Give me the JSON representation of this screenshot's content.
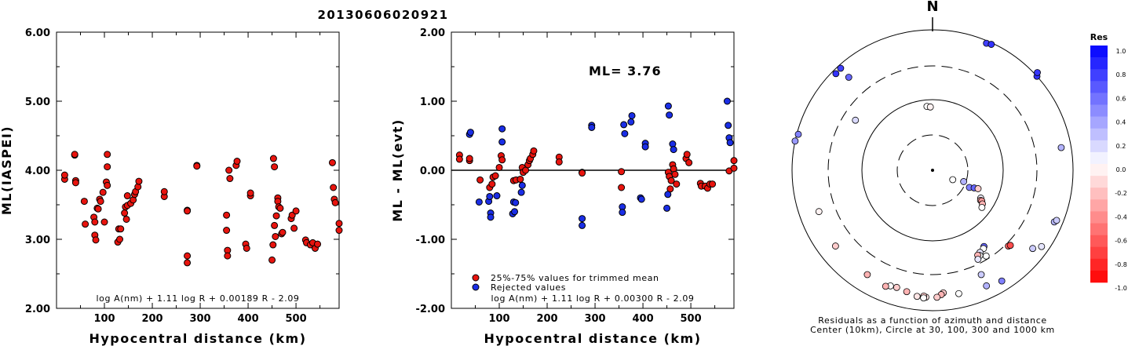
{
  "title": "20130606020921",
  "left_panel": {
    "ylabel": "ML(IASPEI)",
    "xlabel": "Hypocentral distance (km)",
    "formula": "log A(nm) + 1.11 log R + 0.00189 R - 2.09",
    "yticks": [
      "6.00",
      "5.00",
      "4.00",
      "3.00",
      "2.00"
    ],
    "xticks": [
      "100",
      "200",
      "300",
      "400",
      "500"
    ]
  },
  "middle_panel": {
    "ylabel": "ML - ML(evt)",
    "xlabel": "Hypocentral distance (km)",
    "ml_label": "ML= 3.76",
    "legend_trimmed": "25%-75% values for trimmed mean",
    "legend_rejected": "Rejected values",
    "formula": "log A(nm) + 1.11 log R + 0.00300 R - 2.09",
    "yticks": [
      "2.00",
      "1.00",
      "0.00",
      "-1.00",
      "-2.00"
    ],
    "xticks": [
      "100",
      "200",
      "300",
      "400",
      "500"
    ]
  },
  "polar_panel": {
    "north_label": "N",
    "caption_line1": "Residuals as a function of azimuth and distance",
    "caption_line2": "Center (10km), Circle at 30, 100, 300 and 1000 km"
  },
  "colorbar": {
    "title": "Res",
    "labels": [
      "1.0",
      "0.8",
      "0.6",
      "0.4",
      "0.2",
      "0.0",
      "-0.2",
      "-0.4",
      "-0.6",
      "-0.8",
      "-1.0"
    ]
  },
  "colors": {
    "trimmed": "#e8140e",
    "rejected": "#1a2ee6",
    "positive_residual": "#0000ff",
    "negative_residual": "#ff0000"
  },
  "chart_data": [
    {
      "type": "scatter",
      "name": "ml-vs-distance",
      "xlabel": "Hypocentral distance (km)",
      "ylabel": "ML(IASPEI)",
      "xlim": [
        0,
        590
      ],
      "ylim": [
        2,
        6
      ],
      "points": [
        [
          17,
          3.87
        ],
        [
          17,
          3.93
        ],
        [
          38,
          4.22
        ],
        [
          38,
          4.23
        ],
        [
          40,
          3.85
        ],
        [
          40,
          3.82
        ],
        [
          58,
          3.55
        ],
        [
          60,
          3.22
        ],
        [
          78,
          3.32
        ],
        [
          80,
          3.25
        ],
        [
          80,
          3.06
        ],
        [
          82,
          2.99
        ],
        [
          85,
          3.45
        ],
        [
          87,
          3.44
        ],
        [
          90,
          3.58
        ],
        [
          92,
          3.55
        ],
        [
          97,
          3.68
        ],
        [
          100,
          3.25
        ],
        [
          104,
          3.83
        ],
        [
          106,
          3.78
        ],
        [
          106,
          4.23
        ],
        [
          106,
          4.05
        ],
        [
          128,
          2.96
        ],
        [
          130,
          3.15
        ],
        [
          132,
          3.0
        ],
        [
          134,
          3.15
        ],
        [
          142,
          3.38
        ],
        [
          144,
          3.47
        ],
        [
          146,
          3.29
        ],
        [
          148,
          3.49
        ],
        [
          148,
          3.63
        ],
        [
          155,
          3.52
        ],
        [
          160,
          3.57
        ],
        [
          163,
          3.65
        ],
        [
          165,
          3.69
        ],
        [
          170,
          3.76
        ],
        [
          172,
          3.84
        ],
        [
          225,
          3.62
        ],
        [
          225,
          3.69
        ],
        [
          273,
          3.42
        ],
        [
          273,
          3.41
        ],
        [
          273,
          2.76
        ],
        [
          273,
          2.66
        ],
        [
          293,
          4.07
        ],
        [
          293,
          4.06
        ],
        [
          355,
          3.35
        ],
        [
          355,
          3.13
        ],
        [
          357,
          2.84
        ],
        [
          357,
          2.76
        ],
        [
          360,
          4.0
        ],
        [
          362,
          3.88
        ],
        [
          375,
          4.07
        ],
        [
          377,
          4.13
        ],
        [
          395,
          2.93
        ],
        [
          397,
          2.87
        ],
        [
          405,
          3.63
        ],
        [
          405,
          3.67
        ],
        [
          450,
          2.7
        ],
        [
          452,
          2.92
        ],
        [
          453,
          4.17
        ],
        [
          455,
          4.05
        ],
        [
          455,
          3.2
        ],
        [
          457,
          3.04
        ],
        [
          459,
          3.34
        ],
        [
          462,
          3.6
        ],
        [
          462,
          3.55
        ],
        [
          464,
          3.47
        ],
        [
          467,
          3.45
        ],
        [
          470,
          3.08
        ],
        [
          472,
          3.1
        ],
        [
          490,
          3.3
        ],
        [
          492,
          3.35
        ],
        [
          496,
          3.16
        ],
        [
          500,
          3.41
        ],
        [
          520,
          2.99
        ],
        [
          522,
          2.95
        ],
        [
          530,
          2.92
        ],
        [
          535,
          2.95
        ],
        [
          540,
          2.87
        ],
        [
          545,
          2.93
        ],
        [
          576,
          4.11
        ],
        [
          578,
          3.75
        ],
        [
          580,
          3.58
        ],
        [
          582,
          3.53
        ],
        [
          590,
          3.23
        ],
        [
          590,
          3.13
        ]
      ]
    },
    {
      "type": "scatter",
      "name": "residual-vs-distance",
      "xlabel": "Hypocentral distance (km)",
      "ylabel": "ML - ML(evt)",
      "xlim": [
        0,
        590
      ],
      "ylim": [
        -2,
        2
      ],
      "series": [
        {
          "name": "25%-75% values for trimmed mean",
          "points": [
            [
              17,
              0.22
            ],
            [
              17,
              0.16
            ],
            [
              38,
              0.14
            ],
            [
              38,
              0.17
            ],
            [
              60,
              -0.14
            ],
            [
              80,
              -0.25
            ],
            [
              85,
              -0.2
            ],
            [
              87,
              -0.1
            ],
            [
              92,
              -0.08
            ],
            [
              100,
              0.04
            ],
            [
              104,
              0.21
            ],
            [
              106,
              0.15
            ],
            [
              130,
              -0.15
            ],
            [
              135,
              -0.14
            ],
            [
              144,
              -0.13
            ],
            [
              148,
              0.04
            ],
            [
              150,
              -0.03
            ],
            [
              155,
              0.0
            ],
            [
              160,
              0.08
            ],
            [
              163,
              0.14
            ],
            [
              165,
              0.17
            ],
            [
              170,
              0.23
            ],
            [
              172,
              0.28
            ],
            [
              225,
              0.19
            ],
            [
              225,
              0.12
            ],
            [
              273,
              -0.03
            ],
            [
              273,
              -0.04
            ],
            [
              355,
              -0.02
            ],
            [
              355,
              -0.25
            ],
            [
              453,
              -0.03
            ],
            [
              455,
              -0.09
            ],
            [
              457,
              -0.27
            ],
            [
              459,
              -0.15
            ],
            [
              462,
              0.08
            ],
            [
              464,
              0.02
            ],
            [
              467,
              -0.06
            ],
            [
              470,
              -0.2
            ],
            [
              490,
              0.17
            ],
            [
              492,
              0.23
            ],
            [
              496,
              0.11
            ],
            [
              520,
              -0.19
            ],
            [
              522,
              -0.23
            ],
            [
              530,
              -0.23
            ],
            [
              535,
              -0.26
            ],
            [
              540,
              -0.2
            ],
            [
              545,
              -0.2
            ],
            [
              580,
              -0.01
            ],
            [
              590,
              0.03
            ],
            [
              590,
              0.14
            ]
          ]
        },
        {
          "name": "Rejected values",
          "points": [
            [
              38,
              0.52
            ],
            [
              40,
              0.55
            ],
            [
              58,
              -0.46
            ],
            [
              78,
              -0.45
            ],
            [
              80,
              -0.38
            ],
            [
              82,
              -0.62
            ],
            [
              82,
              -0.68
            ],
            [
              95,
              -0.37
            ],
            [
              106,
              0.6
            ],
            [
              106,
              0.41
            ],
            [
              128,
              -0.63
            ],
            [
              130,
              -0.46
            ],
            [
              132,
              -0.6
            ],
            [
              134,
              -0.47
            ],
            [
              146,
              -0.32
            ],
            [
              148,
              -0.22
            ],
            [
              273,
              -0.7
            ],
            [
              273,
              -0.8
            ],
            [
              293,
              0.65
            ],
            [
              293,
              0.62
            ],
            [
              357,
              -0.53
            ],
            [
              357,
              -0.61
            ],
            [
              360,
              0.66
            ],
            [
              362,
              0.53
            ],
            [
              375,
              0.7
            ],
            [
              377,
              0.79
            ],
            [
              395,
              -0.4
            ],
            [
              397,
              -0.42
            ],
            [
              405,
              0.39
            ],
            [
              405,
              0.34
            ],
            [
              450,
              -0.55
            ],
            [
              452,
              -0.35
            ],
            [
              453,
              0.93
            ],
            [
              455,
              0.8
            ],
            [
              462,
              0.38
            ],
            [
              464,
              0.3
            ],
            [
              576,
              1.0
            ],
            [
              578,
              0.65
            ],
            [
              580,
              0.47
            ],
            [
              582,
              0.4
            ]
          ]
        }
      ],
      "annotation": "ML= 3.76"
    },
    {
      "type": "scatter",
      "name": "residual-vs-azimuth-distance",
      "rings_km": [
        30,
        100,
        300,
        1000
      ],
      "center_km": 10,
      "points": [
        {
          "az": 355,
          "dist": 80,
          "res": 0.0
        },
        {
          "az": 358,
          "dist": 78,
          "res": -0.05
        },
        {
          "az": 23,
          "dist": 920,
          "res": 0.75
        },
        {
          "az": 25,
          "dist": 950,
          "res": 0.8
        },
        {
          "az": 315,
          "dist": 880,
          "res": 0.8
        },
        {
          "az": 318,
          "dist": 900,
          "res": 0.75
        },
        {
          "az": 318,
          "dist": 600,
          "res": 0.6
        },
        {
          "az": 48,
          "dist": 1000,
          "res": 0.8
        },
        {
          "az": 47,
          "dist": 1050,
          "res": 0.78
        },
        {
          "az": 285,
          "dist": 950,
          "res": 0.5
        },
        {
          "az": 282,
          "dist": 1000,
          "res": 0.4
        },
        {
          "az": 303,
          "dist": 200,
          "res": 0.15
        },
        {
          "az": 80,
          "dist": 720,
          "res": 0.3
        },
        {
          "az": 250,
          "dist": 520,
          "res": -0.05
        },
        {
          "az": 115,
          "dist": 20,
          "res": 0.0
        },
        {
          "az": 110,
          "dist": 28,
          "res": 0.3
        },
        {
          "az": 115,
          "dist": 36,
          "res": 0.5
        },
        {
          "az": 113,
          "dist": 42,
          "res": 0.6
        },
        {
          "az": 112,
          "dist": 48,
          "res": -0.2
        },
        {
          "az": 120,
          "dist": 60,
          "res": 0.05
        },
        {
          "az": 122,
          "dist": 62,
          "res": -0.3
        },
        {
          "az": 122,
          "dist": 65,
          "res": -0.4
        },
        {
          "az": 124,
          "dist": 70,
          "res": -0.3
        },
        {
          "az": 127,
          "dist": 74,
          "res": 0.0
        },
        {
          "az": 146,
          "dist": 200,
          "res": 0.6
        },
        {
          "az": 147,
          "dist": 210,
          "res": 0.0
        },
        {
          "az": 150,
          "dist": 220,
          "res": 0.1
        },
        {
          "az": 151,
          "dist": 240,
          "res": 0.0
        },
        {
          "az": 152,
          "dist": 230,
          "res": -0.3
        },
        {
          "az": 153,
          "dist": 260,
          "res": 0.1
        },
        {
          "az": 148,
          "dist": 270,
          "res": 0.0
        },
        {
          "az": 135,
          "dist": 330,
          "res": -0.6
        },
        {
          "az": 134,
          "dist": 340,
          "res": -0.7
        },
        {
          "az": 155,
          "dist": 430,
          "res": 0.2
        },
        {
          "az": 175,
          "dist": 560,
          "res": -0.2
        },
        {
          "az": 176,
          "dist": 590,
          "res": -0.3
        },
        {
          "az": 178,
          "dist": 640,
          "res": -0.2
        },
        {
          "az": 183,
          "dist": 640,
          "res": -0.1
        },
        {
          "az": 184,
          "dist": 620,
          "res": -0.2
        },
        {
          "az": 184,
          "dist": 660,
          "res": 0.0
        },
        {
          "az": 187,
          "dist": 640,
          "res": -0.1
        },
        {
          "az": 192,
          "dist": 580,
          "res": -0.3
        },
        {
          "az": 197,
          "dist": 550,
          "res": -0.2
        },
        {
          "az": 200,
          "dist": 560,
          "res": 0.0
        },
        {
          "az": 202,
          "dist": 600,
          "res": -0.3
        },
        {
          "az": 212,
          "dist": 560,
          "res": -0.3
        },
        {
          "az": 232,
          "dist": 560,
          "res": -0.2
        },
        {
          "az": 168,
          "dist": 620,
          "res": 0.0
        },
        {
          "az": 155,
          "dist": 650,
          "res": 0.3
        },
        {
          "az": 148,
          "dist": 720,
          "res": 0.5
        },
        {
          "az": 128,
          "dist": 640,
          "res": 0.2
        },
        {
          "az": 125,
          "dist": 780,
          "res": 0.1
        },
        {
          "az": 113,
          "dist": 760,
          "res": 0.3
        },
        {
          "az": 112,
          "dist": 800,
          "res": 0.2
        }
      ]
    }
  ]
}
